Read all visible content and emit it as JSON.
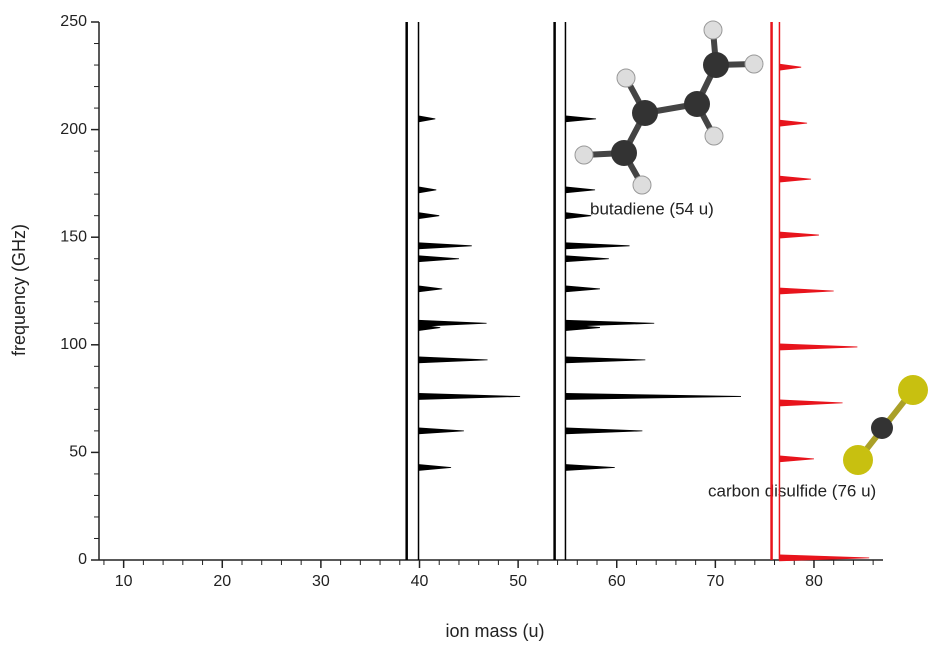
{
  "chart_data": {
    "type": "spectra",
    "x_label": "ion mass (u)",
    "y_label": "frequency (GHz)",
    "xlim": [
      7.5,
      87
    ],
    "ylim": [
      0,
      250
    ],
    "xticks": [
      10,
      20,
      30,
      40,
      50,
      60,
      70,
      80
    ],
    "yticks": [
      0,
      50,
      100,
      150,
      200,
      250
    ],
    "xminorticks": [
      8,
      12,
      14,
      16,
      18,
      22,
      24,
      26,
      28,
      32,
      34,
      36,
      38,
      42,
      44,
      46,
      48,
      52,
      54,
      56,
      58,
      62,
      64,
      66,
      68,
      72,
      74,
      76,
      78,
      82,
      84,
      86
    ],
    "yminorticks": [
      10,
      20,
      30,
      40,
      60,
      70,
      80,
      90,
      110,
      120,
      130,
      140,
      160,
      170,
      180,
      190,
      210,
      220,
      230,
      240
    ],
    "annotations": [
      "butadiene (54 u)",
      "carbon disulfide (76 u)"
    ],
    "traces": [
      {
        "color": "#000000",
        "ref_mass": 38.7,
        "baseline_mass": 39.9,
        "freqs": [
          205,
          172,
          160,
          146,
          140,
          126,
          110,
          108,
          93,
          76,
          60,
          43
        ],
        "tips": [
          41.6,
          41.7,
          42.0,
          45.3,
          44.0,
          42.3,
          46.8,
          42.1,
          46.9,
          50.2,
          44.5,
          43.2
        ]
      },
      {
        "color": "#000000",
        "ref_mass": 53.7,
        "baseline_mass": 54.8,
        "freqs": [
          205,
          172,
          160,
          146,
          140,
          126,
          110,
          108,
          93,
          76,
          60,
          43
        ],
        "tips": [
          57.9,
          57.8,
          57.4,
          61.3,
          59.2,
          58.3,
          63.8,
          58.3,
          62.9,
          72.6,
          62.6,
          59.8
        ]
      },
      {
        "color": "#e8141c",
        "ref_mass": 75.7,
        "baseline_mass": 76.5,
        "freqs": [
          229,
          203,
          177,
          151,
          125,
          99,
          73,
          47,
          1
        ],
        "tips": [
          78.7,
          79.3,
          79.7,
          80.5,
          82.0,
          84.4,
          82.9,
          80.0,
          85.6
        ]
      }
    ]
  }
}
